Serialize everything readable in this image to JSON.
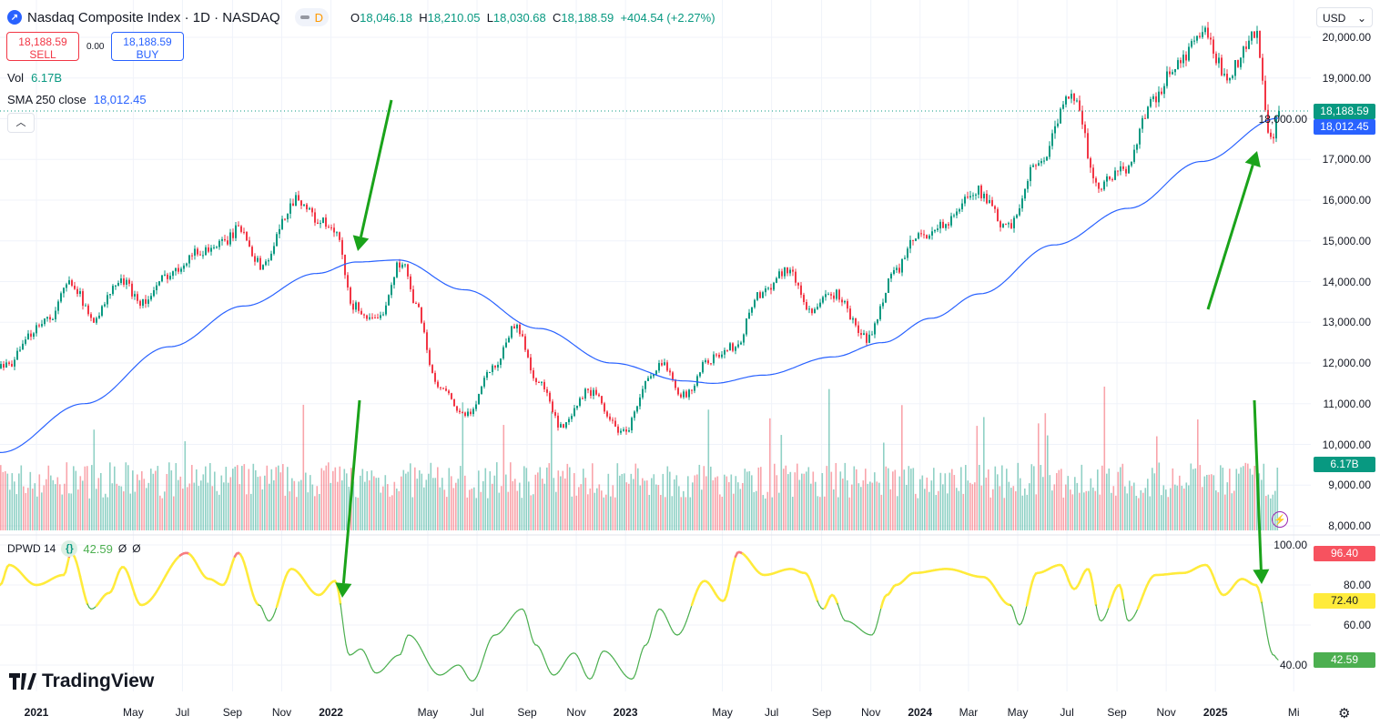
{
  "header": {
    "symbol_title": "Nasdaq Composite Index · 1D · NASDAQ",
    "interval_badge": "D",
    "ohlc": {
      "o_label": "O",
      "o": "18,046.18",
      "h_label": "H",
      "h": "18,210.05",
      "l_label": "L",
      "l": "18,030.68",
      "c_label": "C",
      "c": "18,188.59",
      "change": "+404.54 (+2.27%)"
    },
    "sell_price": "18,188.59",
    "sell_label": "SELL",
    "spread": "0.00",
    "buy_price": "18,188.59",
    "buy_label": "BUY",
    "currency": "USD"
  },
  "indicators": {
    "vol_label": "Vol",
    "vol_value": "6.17B",
    "sma_label": "SMA 250 close",
    "sma_value": "18,012.45",
    "dpwd_label": "DPWD 14",
    "dpwd_value": "42.59",
    "dpwd_extra1": "Ø",
    "dpwd_extra2": "Ø"
  },
  "price_axis": [
    "20,000.00",
    "19,000.00",
    "18,000.00",
    "17,000.00",
    "16,000.00",
    "15,000.00",
    "14,000.00",
    "13,000.00",
    "12,000.00",
    "11,000.00",
    "10,000.00",
    "9,000.00",
    "8,000.00"
  ],
  "price_tags": {
    "last": "18,188.59",
    "sma": "18,012.45",
    "vol": "6.17B"
  },
  "osc_axis": [
    "100.00",
    "80.00",
    "60.00",
    "40.00"
  ],
  "osc_tags": {
    "high": "96.40",
    "mid": "72.40",
    "last": "42.59"
  },
  "time_axis": [
    {
      "label": "2021",
      "year": true,
      "date": "2021-01-01"
    },
    {
      "label": "May",
      "date": "2021-05-01"
    },
    {
      "label": "Jul",
      "date": "2021-07-01"
    },
    {
      "label": "Sep",
      "date": "2021-09-01"
    },
    {
      "label": "Nov",
      "date": "2021-11-01"
    },
    {
      "label": "2022",
      "year": true,
      "date": "2022-01-01"
    },
    {
      "label": "May",
      "date": "2022-05-01"
    },
    {
      "label": "Jul",
      "date": "2022-07-01"
    },
    {
      "label": "Sep",
      "date": "2022-09-01"
    },
    {
      "label": "Nov",
      "date": "2022-11-01"
    },
    {
      "label": "2023",
      "year": true,
      "date": "2023-01-01"
    },
    {
      "label": "May",
      "date": "2023-05-01"
    },
    {
      "label": "Jul",
      "date": "2023-07-01"
    },
    {
      "label": "Sep",
      "date": "2023-09-01"
    },
    {
      "label": "Nov",
      "date": "2023-11-01"
    },
    {
      "label": "2024",
      "year": true,
      "date": "2024-01-01"
    },
    {
      "label": "Mar",
      "date": "2024-03-01"
    },
    {
      "label": "May",
      "date": "2024-05-01"
    },
    {
      "label": "Jul",
      "date": "2024-07-01"
    },
    {
      "label": "Sep",
      "date": "2024-09-01"
    },
    {
      "label": "Nov",
      "date": "2024-11-01"
    },
    {
      "label": "2025",
      "year": true,
      "date": "2025-01-01"
    },
    {
      "label": "Mi",
      "date": "2025-04-08"
    }
  ],
  "branding": "TradingView",
  "colors": {
    "up": "#089981",
    "down": "#f23645",
    "sma": "#2962ff",
    "osc_high": "#ffeb3b",
    "osc_low": "#4caf50",
    "osc_extreme": "#f77c80",
    "arrow": "#1aa31a"
  },
  "chart_data": {
    "type": "candlestick",
    "title": "Nasdaq Composite Index · 1D · NASDAQ",
    "ylim": [
      8000,
      20000
    ],
    "price": [
      [
        "2020-11-17",
        11870
      ],
      [
        "2021-01-15",
        13100
      ],
      [
        "2021-02-12",
        14000
      ],
      [
        "2021-03-10",
        13100
      ],
      [
        "2021-04-15",
        14000
      ],
      [
        "2021-05-12",
        13500
      ],
      [
        "2021-06-15",
        14200
      ],
      [
        "2021-07-15",
        14700
      ],
      [
        "2021-08-15",
        14900
      ],
      [
        "2021-09-10",
        15300
      ],
      [
        "2021-10-05",
        14400
      ],
      [
        "2021-11-19",
        16050
      ],
      [
        "2021-12-15",
        15500
      ],
      [
        "2022-01-05",
        15200
      ],
      [
        "2022-01-27",
        13400
      ],
      [
        "2022-02-24",
        13000
      ],
      [
        "2022-03-29",
        14500
      ],
      [
        "2022-04-15",
        13400
      ],
      [
        "2022-05-12",
        11400
      ],
      [
        "2022-06-16",
        10700
      ],
      [
        "2022-07-20",
        11900
      ],
      [
        "2022-08-16",
        12900
      ],
      [
        "2022-09-15",
        11500
      ],
      [
        "2022-10-13",
        10400
      ],
      [
        "2022-11-15",
        11300
      ],
      [
        "2022-12-28",
        10300
      ],
      [
        "2023-01-31",
        11600
      ],
      [
        "2023-02-15",
        12000
      ],
      [
        "2023-03-13",
        11200
      ],
      [
        "2023-04-15",
        12100
      ],
      [
        "2023-05-15",
        12400
      ],
      [
        "2023-06-15",
        13700
      ],
      [
        "2023-07-19",
        14300
      ],
      [
        "2023-08-18",
        13300
      ],
      [
        "2023-09-15",
        13700
      ],
      [
        "2023-10-26",
        12600
      ],
      [
        "2023-11-30",
        14250
      ],
      [
        "2023-12-28",
        15100
      ],
      [
        "2024-01-31",
        15400
      ],
      [
        "2024-03-08",
        16250
      ],
      [
        "2024-04-19",
        15300
      ],
      [
        "2024-05-20",
        16800
      ],
      [
        "2024-07-10",
        18600
      ],
      [
        "2024-08-05",
        16300
      ],
      [
        "2024-09-06",
        16700
      ],
      [
        "2024-10-15",
        18400
      ],
      [
        "2024-11-11",
        19300
      ],
      [
        "2024-12-16",
        20100
      ],
      [
        "2025-01-13",
        19100
      ],
      [
        "2025-02-19",
        20050
      ],
      [
        "2025-03-10",
        17400
      ],
      [
        "2025-03-20",
        18188.59
      ]
    ],
    "sma_250": [
      [
        "2020-11-17",
        9800
      ],
      [
        "2021-03-01",
        11000
      ],
      [
        "2021-06-15",
        12400
      ],
      [
        "2021-09-15",
        13400
      ],
      [
        "2021-12-15",
        14200
      ],
      [
        "2022-02-01",
        14480
      ],
      [
        "2022-03-25",
        14530
      ],
      [
        "2022-06-15",
        13800
      ],
      [
        "2022-09-15",
        12850
      ],
      [
        "2022-12-15",
        12000
      ],
      [
        "2023-03-15",
        11560
      ],
      [
        "2023-04-20",
        11500
      ],
      [
        "2023-06-20",
        11700
      ],
      [
        "2023-09-15",
        12150
      ],
      [
        "2023-11-15",
        12500
      ],
      [
        "2024-01-15",
        13100
      ],
      [
        "2024-03-15",
        13700
      ],
      [
        "2024-06-15",
        14900
      ],
      [
        "2024-09-15",
        15800
      ],
      [
        "2024-12-15",
        16950
      ],
      [
        "2025-03-20",
        18012.45
      ]
    ],
    "volume_last": "6.17B",
    "dpwd_14": {
      "ylim": [
        30,
        100
      ],
      "points": [
        [
          "2020-11-17",
          80
        ],
        [
          "2020-11-28",
          90
        ],
        [
          "2021-01-01",
          80
        ],
        [
          "2021-02-04",
          85
        ],
        [
          "2021-02-13",
          96
        ],
        [
          "2021-03-10",
          68
        ],
        [
          "2021-04-01",
          76
        ],
        [
          "2021-04-18",
          89
        ],
        [
          "2021-05-11",
          70
        ],
        [
          "2021-07-06",
          96
        ],
        [
          "2021-08-03",
          83
        ],
        [
          "2021-08-20",
          80
        ],
        [
          "2021-09-08",
          96
        ],
        [
          "2021-10-04",
          70
        ],
        [
          "2021-10-16",
          62
        ],
        [
          "2021-11-13",
          88
        ],
        [
          "2021-12-17",
          75
        ],
        [
          "2022-01-06",
          82
        ],
        [
          "2022-01-24",
          45
        ],
        [
          "2022-02-07",
          48
        ],
        [
          "2022-02-26",
          36
        ],
        [
          "2022-03-27",
          45
        ],
        [
          "2022-04-07",
          55
        ],
        [
          "2022-05-16",
          35
        ],
        [
          "2022-06-08",
          40
        ],
        [
          "2022-06-25",
          32
        ],
        [
          "2022-07-23",
          55
        ],
        [
          "2022-08-26",
          68
        ],
        [
          "2022-09-12",
          50
        ],
        [
          "2022-10-04",
          35
        ],
        [
          "2022-10-29",
          46
        ],
        [
          "2022-11-18",
          33
        ],
        [
          "2022-12-05",
          47
        ],
        [
          "2023-01-09",
          33
        ],
        [
          "2023-01-26",
          50
        ],
        [
          "2023-02-12",
          68
        ],
        [
          "2023-03-06",
          55
        ],
        [
          "2023-04-09",
          82
        ],
        [
          "2023-05-02",
          72
        ],
        [
          "2023-05-21",
          96.4
        ],
        [
          "2023-06-22",
          85
        ],
        [
          "2023-07-25",
          88
        ],
        [
          "2023-08-11",
          86
        ],
        [
          "2023-09-03",
          68
        ],
        [
          "2023-09-14",
          75
        ],
        [
          "2023-10-01",
          62
        ],
        [
          "2023-11-02",
          55
        ],
        [
          "2023-11-21",
          75
        ],
        [
          "2023-12-02",
          80
        ],
        [
          "2023-12-25",
          86
        ],
        [
          "2024-02-03",
          88
        ],
        [
          "2024-03-19",
          84
        ],
        [
          "2024-04-22",
          70
        ],
        [
          "2024-05-03",
          60
        ],
        [
          "2024-05-25",
          86
        ],
        [
          "2024-06-23",
          90
        ],
        [
          "2024-07-10",
          78
        ],
        [
          "2024-07-27",
          88
        ],
        [
          "2024-08-12",
          62
        ],
        [
          "2024-09-04",
          80
        ],
        [
          "2024-09-15",
          62
        ],
        [
          "2024-10-19",
          85
        ],
        [
          "2024-11-22",
          86
        ],
        [
          "2024-12-20",
          90
        ],
        [
          "2025-01-11",
          75
        ],
        [
          "2025-02-03",
          83
        ],
        [
          "2025-02-20",
          80
        ],
        [
          "2025-03-14",
          45
        ],
        [
          "2025-03-20",
          42.59
        ]
      ]
    }
  }
}
